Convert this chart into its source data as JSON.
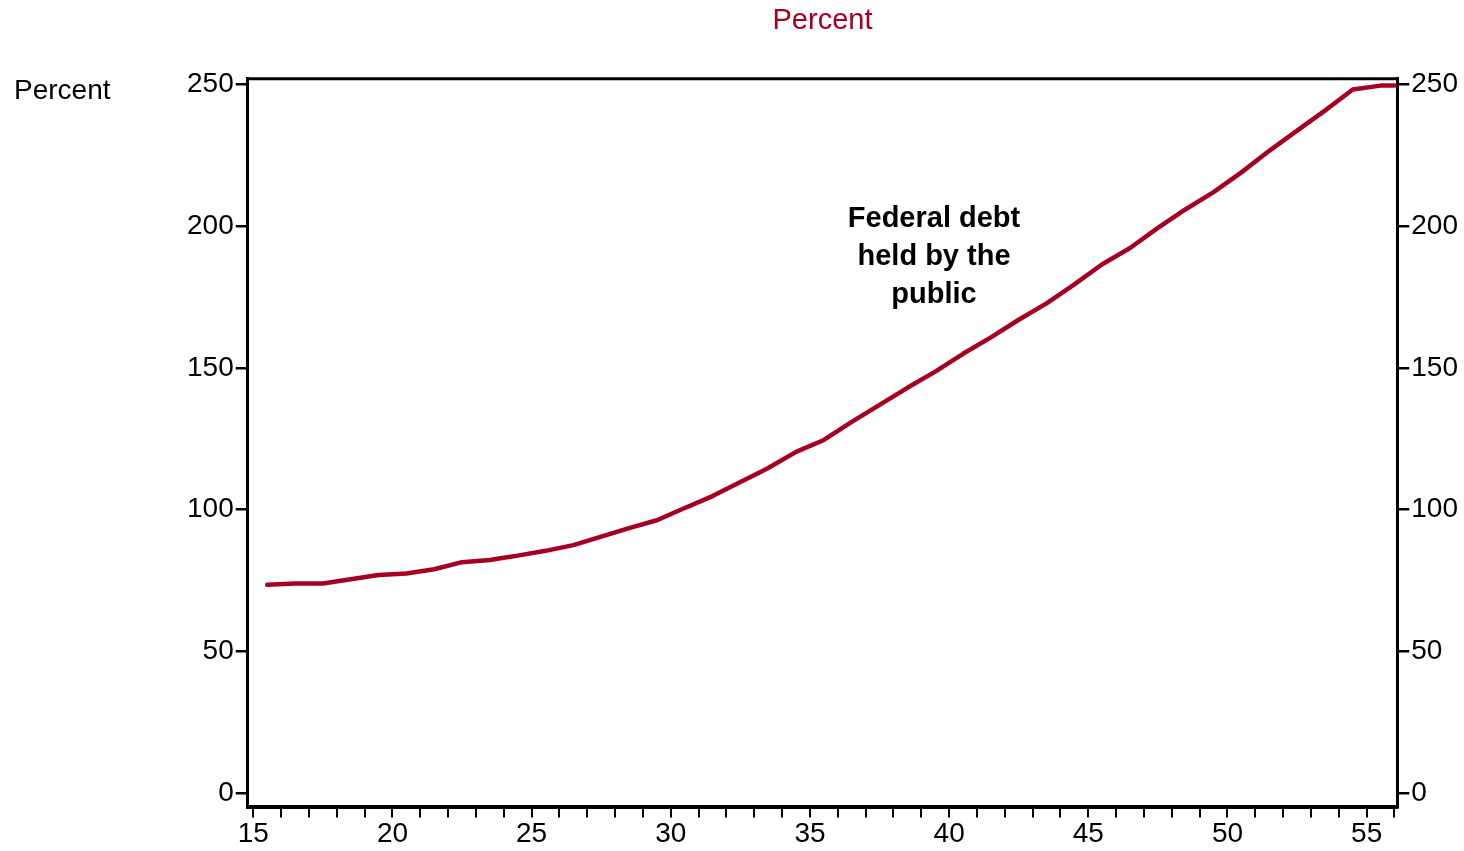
{
  "chart_data": {
    "type": "line",
    "title": "Percent",
    "ylabel": "Percent",
    "annotations": [
      "Federal debt held by the public"
    ],
    "x": [
      15.5,
      16.5,
      17.5,
      18.5,
      19.5,
      20.5,
      21.5,
      22.5,
      23.5,
      24.5,
      25.5,
      26.5,
      27.5,
      28.5,
      29.5,
      30.5,
      31.5,
      32.5,
      33.5,
      34.5,
      35.5,
      36.5,
      37.5,
      38.5,
      39.5,
      40.5,
      41.5,
      42.5,
      43.5,
      44.5,
      45.5,
      46.5,
      47.5,
      48.5,
      49.5,
      50.5,
      51.5,
      52.5,
      53.5,
      54.5,
      55.5,
      56
    ],
    "series": [
      {
        "color": "#a50021",
        "values": [
          73.5,
          74,
          74,
          75.5,
          77,
          77.5,
          79,
          81.5,
          82.3,
          83.8,
          85.5,
          87.5,
          90.5,
          93.5,
          96.3,
          100.6,
          104.8,
          109.8,
          114.7,
          120.4,
          124.6,
          131,
          137,
          143,
          148.7,
          155,
          160.8,
          167,
          172.8,
          179.5,
          186.6,
          192.3,
          199.4,
          206,
          212,
          219,
          226.6,
          233.7,
          240.8,
          248.2,
          249.6,
          249.6
        ]
      }
    ],
    "xlim": [
      14.8,
      56.1
    ],
    "xticks": [
      15,
      {
        "value": 16,
        "label": null
      },
      {
        "value": 17,
        "label": null
      },
      {
        "value": 18,
        "label": null
      },
      {
        "value": 19,
        "label": null
      },
      20,
      {
        "value": 21,
        "label": null
      },
      {
        "value": 22,
        "label": null
      },
      {
        "value": 23,
        "label": null
      },
      {
        "value": 24,
        "label": null
      },
      25,
      {
        "value": 26,
        "label": null
      },
      {
        "value": 27,
        "label": null
      },
      {
        "value": 28,
        "label": null
      },
      {
        "value": 29,
        "label": null
      },
      30,
      {
        "value": 31,
        "label": null
      },
      {
        "value": 32,
        "label": null
      },
      {
        "value": 33,
        "label": null
      },
      {
        "value": 34,
        "label": null
      },
      35,
      {
        "value": 36,
        "label": null
      },
      {
        "value": 37,
        "label": null
      },
      {
        "value": 38,
        "label": null
      },
      {
        "value": 39,
        "label": null
      },
      40,
      {
        "value": 41,
        "label": null
      },
      {
        "value": 42,
        "label": null
      },
      {
        "value": 43,
        "label": null
      },
      {
        "value": 44,
        "label": null
      },
      45,
      {
        "value": 46,
        "label": null
      },
      {
        "value": 47,
        "label": null
      },
      {
        "value": 48,
        "label": null
      },
      {
        "value": 49,
        "label": null
      },
      50,
      {
        "value": 51,
        "label": null
      },
      {
        "value": 52,
        "label": null
      },
      {
        "value": 53,
        "label": null
      },
      {
        "value": 54,
        "label": null
      },
      55,
      {
        "value": 56,
        "label": null
      }
    ],
    "ylim": [
      -5,
      252
    ],
    "yticks": [
      0,
      50,
      100,
      150,
      200,
      250
    ],
    "y2lim": [
      -5,
      252
    ],
    "y2ticks": [
      0,
      50,
      100,
      150,
      200,
      250
    ],
    "grid": false,
    "legend": false,
    "marker": "none",
    "line_style": "solid"
  }
}
